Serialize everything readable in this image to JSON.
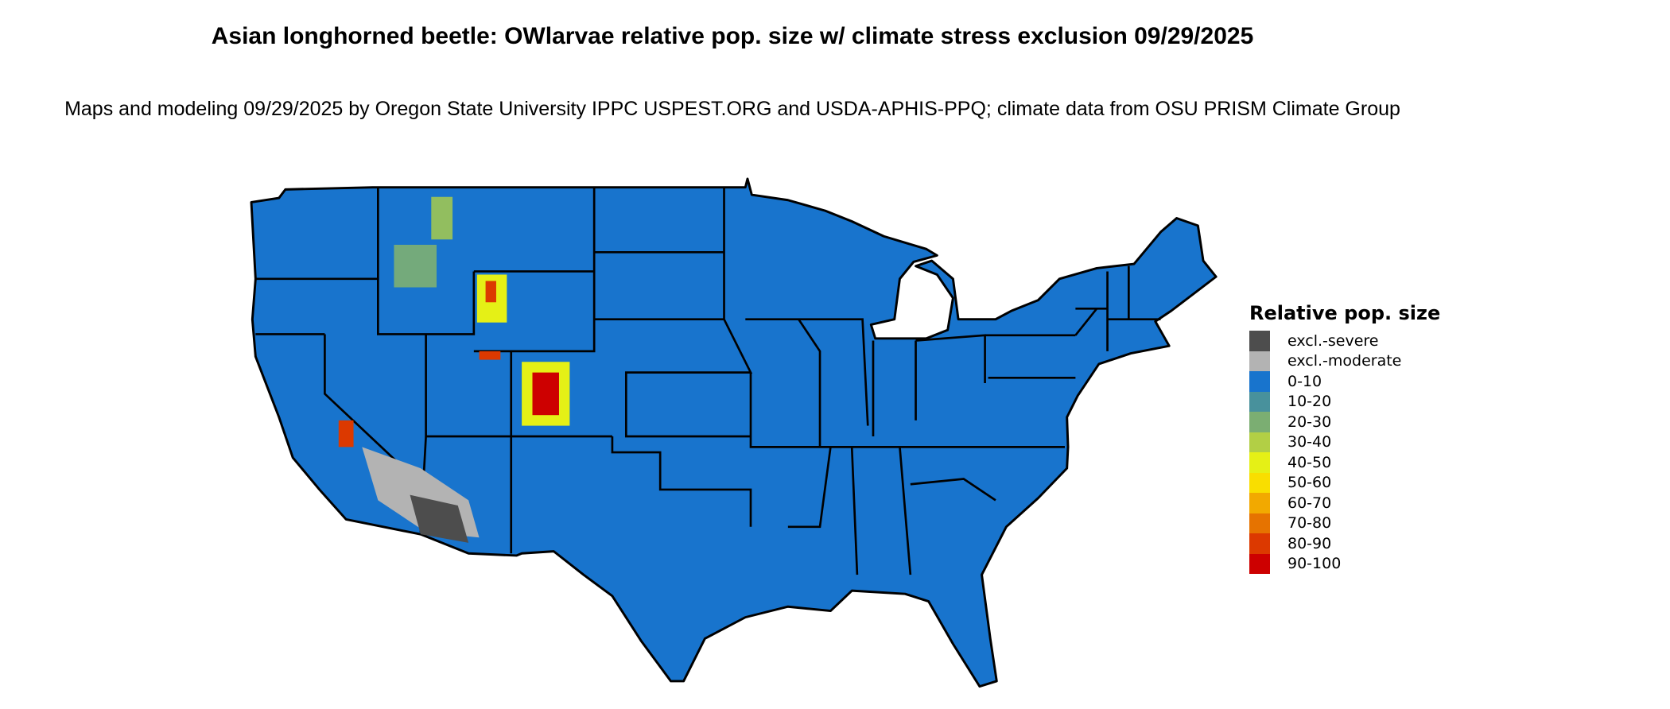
{
  "chart_data": {
    "type": "heatmap",
    "title": "Asian longhorned beetle: OWlarvae relative pop. size w/ climate stress exclusion 09/29/2025",
    "subtitle": "Maps and modeling 09/29/2025 by Oregon State University IPPC USPEST.ORG and USDA-APHIS-PPQ; climate data from OSU PRISM Climate Group",
    "legend": {
      "title": "Relative pop. size",
      "placement": "right",
      "entries": [
        {
          "label": "excl.-severe",
          "color": "#4d4d4d"
        },
        {
          "label": "excl.-moderate",
          "color": "#b3b3b3"
        },
        {
          "label": "0-10",
          "color": "#1874cd"
        },
        {
          "label": "10-20",
          "color": "#48919c"
        },
        {
          "label": "20-30",
          "color": "#7bae72"
        },
        {
          "label": "30-40",
          "color": "#b2cf45"
        },
        {
          "label": "40-50",
          "color": "#e5f016"
        },
        {
          "label": "50-60",
          "color": "#f9de00"
        },
        {
          "label": "60-70",
          "color": "#f2a900"
        },
        {
          "label": "70-80",
          "color": "#e67300"
        },
        {
          "label": "80-90",
          "color": "#dc3900"
        },
        {
          "label": "90-100",
          "color": "#cd0000"
        }
      ]
    },
    "dominant_class": "0-10",
    "region": "Contiguous United States"
  }
}
